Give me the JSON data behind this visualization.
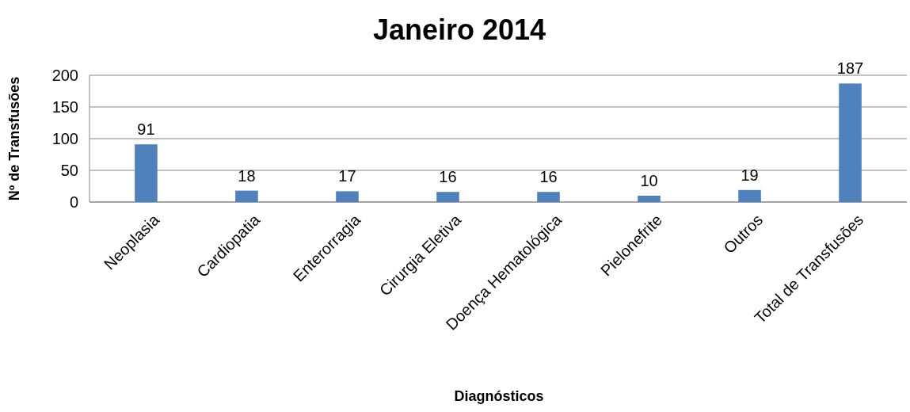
{
  "chart_data": {
    "type": "bar",
    "title": "Janeiro 2014",
    "xlabel": "Diagnósticos",
    "ylabel": "Nº de Transfusões",
    "categories": [
      "Neoplasia",
      "Cardiopatia",
      "Enterorragia",
      "Cirurgia Eletiva",
      "Doença Hematológica",
      "Pielonefrite",
      "Outros",
      "Total de Transfusões"
    ],
    "values": [
      91,
      18,
      17,
      16,
      16,
      10,
      19,
      187
    ],
    "color": "#4f81bd",
    "ylim": [
      0,
      200
    ],
    "yticks": [
      0,
      50,
      100,
      150,
      200
    ],
    "grid": "y",
    "data_labels": true
  }
}
